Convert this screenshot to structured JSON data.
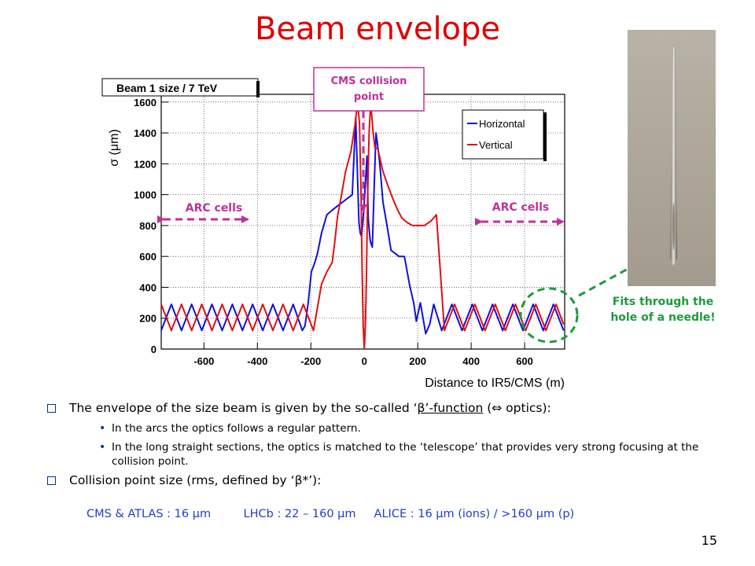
{
  "slide": {
    "title": "Beam envelope",
    "page_number": "15"
  },
  "chart_data": {
    "type": "line",
    "title": "Beam 1 size / 7 TeV",
    "xlabel": "Distance to IR5/CMS (m)",
    "ylabel": "σ (μm)",
    "xlim": [
      -760,
      750
    ],
    "ylim": [
      0,
      1650
    ],
    "xticks": [
      -600,
      -400,
      -200,
      0,
      200,
      400,
      600
    ],
    "yticks": [
      0,
      200,
      400,
      600,
      800,
      1000,
      1200,
      1400,
      1600
    ],
    "grid": true,
    "legend": {
      "placement": "top-right",
      "entries": [
        "Horizontal",
        "Vertical"
      ]
    },
    "series": [
      {
        "name": "Horizontal",
        "color": "#1010e0",
        "x": [
          -760,
          -722,
          -684,
          -646,
          -608,
          -570,
          -532,
          -494,
          -456,
          -418,
          -380,
          -342,
          -304,
          -266,
          -232,
          -222,
          -210,
          -198,
          -185,
          -175,
          -160,
          -140,
          -120,
          -105,
          -90,
          -75,
          -60,
          -45,
          -32,
          -25,
          -20,
          -15,
          -10,
          -5,
          0,
          5,
          10,
          15,
          22,
          30,
          38,
          44,
          50,
          58,
          70,
          85,
          100,
          115,
          130,
          150,
          170,
          185,
          195,
          210,
          230,
          245,
          260,
          290,
          328,
          366,
          404,
          442,
          480,
          518,
          556,
          594,
          632,
          670,
          708,
          746
        ],
        "y": [
          120,
          290,
          120,
          290,
          120,
          290,
          120,
          290,
          120,
          290,
          120,
          290,
          120,
          290,
          120,
          150,
          300,
          500,
          560,
          620,
          750,
          870,
          900,
          920,
          940,
          960,
          980,
          1000,
          1500,
          1100,
          820,
          750,
          730,
          830,
          950,
          1100,
          1250,
          840,
          700,
          660,
          1100,
          1400,
          1320,
          1200,
          950,
          800,
          640,
          620,
          600,
          600,
          410,
          300,
          180,
          300,
          100,
          160,
          290,
          120,
          290,
          120,
          290,
          120,
          290,
          120,
          290,
          120,
          290,
          120,
          290,
          120
        ]
      },
      {
        "name": "Vertical",
        "color": "#e01010",
        "x": [
          -760,
          -722,
          -684,
          -646,
          -608,
          -570,
          -532,
          -494,
          -456,
          -418,
          -380,
          -342,
          -304,
          -266,
          -228,
          -190,
          -160,
          -140,
          -120,
          -110,
          -100,
          -85,
          -70,
          -50,
          -35,
          -25,
          -18,
          -12,
          -8,
          -4,
          0,
          4,
          8,
          12,
          18,
          24,
          32,
          40,
          50,
          70,
          90,
          110,
          125,
          140,
          160,
          180,
          200,
          225,
          250,
          270,
          300,
          338,
          376,
          414,
          452,
          490,
          528,
          566,
          604,
          642,
          680,
          718,
          746
        ],
        "y": [
          290,
          120,
          290,
          120,
          290,
          120,
          290,
          120,
          290,
          120,
          290,
          120,
          290,
          120,
          290,
          120,
          420,
          500,
          560,
          700,
          860,
          1000,
          1150,
          1280,
          1450,
          1600,
          1460,
          1000,
          500,
          150,
          0,
          150,
          450,
          950,
          1400,
          1600,
          1420,
          1300,
          1300,
          1150,
          1050,
          960,
          900,
          850,
          820,
          800,
          800,
          800,
          830,
          870,
          120,
          290,
          120,
          290,
          120,
          290,
          120,
          290,
          120,
          290,
          120,
          290,
          160
        ]
      }
    ],
    "annotations": {
      "cms_point": "CMS collision point",
      "arc_left": "ARC cells",
      "arc_right": "ARC cells",
      "needle_note": "Fits through the hole of a needle!"
    }
  },
  "body": {
    "bullet1": {
      "text1": "The envelope of the size beam is given by the so-called ‘",
      "beta_link": "β’-function",
      "text2": " (⇔ optics):"
    },
    "sub1": "In the arcs the optics follows a regular pattern.",
    "sub2": "In the long straight sections, the optics is matched to the ‘telescope’ that provides very strong focusing at the collision point.",
    "bullet2": "Collision point size (rms, defined by ‘β*’):",
    "sizes": "CMS & ATLAS : 16 μm         LHCb : 22 – 160 μm     ALICE : 16 μm (ions) / >160 μm (p)"
  },
  "colors": {
    "title": "#e00000",
    "cms_annot": "#c0309a",
    "needle_note": "#1e9a3c",
    "sizes": "#1f3fc8"
  }
}
